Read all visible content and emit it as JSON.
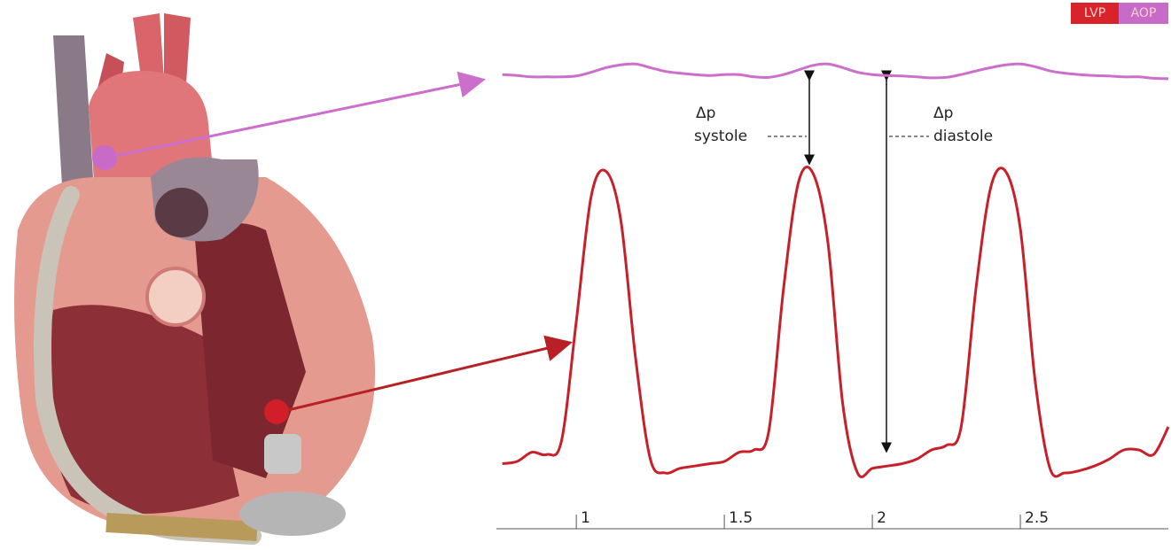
{
  "chart_data": {
    "type": "line",
    "x": [
      0.75,
      0.8,
      0.85,
      0.9,
      0.95,
      1.0,
      1.05,
      1.1,
      1.15,
      1.2,
      1.25,
      1.3,
      1.35,
      1.4,
      1.45,
      1.5,
      1.55,
      1.6,
      1.65,
      1.7,
      1.75,
      1.8,
      1.85,
      1.9,
      1.95,
      2.0,
      2.05,
      2.1,
      2.15,
      2.2,
      2.25,
      2.3,
      2.35,
      2.4,
      2.45,
      2.5,
      2.55,
      2.6,
      2.65,
      2.7,
      2.75,
      2.8,
      2.85,
      2.9,
      2.95,
      3.0
    ],
    "series": [
      {
        "name": "LVP",
        "color": "#c8202a",
        "values": [
          7,
          7.5,
          9.5,
          9,
          12,
          38,
          65,
          70.5,
          60,
          30,
          8,
          5,
          6,
          6.5,
          7,
          7.5,
          9.5,
          10,
          14,
          45,
          68,
          70,
          55,
          20,
          5,
          6,
          6.5,
          7,
          8,
          10,
          11,
          15,
          45,
          67,
          70.5,
          58,
          25,
          6,
          5,
          5.5,
          6.5,
          8,
          10,
          10,
          9,
          15
        ]
      },
      {
        "name": "AOP",
        "color": "#cc6fcc",
        "values": [
          91.5,
          91.3,
          91,
          91,
          91,
          91.2,
          92,
          93,
          93.6,
          93.8,
          93,
          92.2,
          91.8,
          91.5,
          91.3,
          91.5,
          91.5,
          91,
          90.9,
          91.5,
          92.5,
          93.5,
          93.8,
          93,
          92,
          91.5,
          91.3,
          91.2,
          91,
          90.8,
          90.9,
          91.5,
          92.3,
          93,
          93.6,
          93.8,
          93.2,
          92.3,
          91.8,
          91.5,
          91.3,
          91.2,
          91,
          91,
          90.7,
          90.6
        ]
      }
    ],
    "xlim": [
      0.73,
      3.0
    ],
    "xticks": [
      1,
      1.5,
      2,
      2.5
    ],
    "ylim": [
      0,
      100
    ],
    "annotations": {
      "systole_delta": "Δp",
      "systole": "systole",
      "diastole_delta": "Δp",
      "diastole": "diastole"
    }
  }
}
